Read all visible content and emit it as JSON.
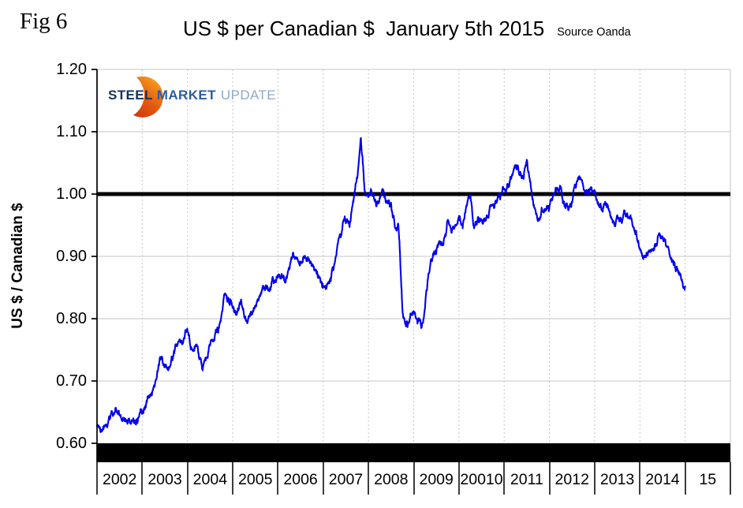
{
  "figure": {
    "label": "Fig 6"
  },
  "logo": {
    "steel": "STEEL",
    "market": "MARKET",
    "update": "UPDATE",
    "crescent_top_color": "#f7a41e",
    "crescent_bottom_color": "#d23b0e"
  },
  "chart_data": {
    "type": "line",
    "title": "US $ per Canadian $  January 5th 2015",
    "source": "Source Oanda",
    "ylabel": "US $ / Canadian $",
    "ylim": [
      0.57,
      1.2
    ],
    "xlim_years": [
      2002,
      2016
    ],
    "grid": {
      "h_color": "#c6c6c6",
      "v_color": "#c6c6c6",
      "v_style": "dashed"
    },
    "y_ticks": [
      {
        "label": "1.20",
        "value": 1.2
      },
      {
        "label": "1.10",
        "value": 1.1
      },
      {
        "label": "1.00",
        "value": 1.0
      },
      {
        "label": "0.90",
        "value": 0.9
      },
      {
        "label": "0.80",
        "value": 0.8
      },
      {
        "label": "0.70",
        "value": 0.7
      },
      {
        "label": "0.60",
        "value": 0.6
      }
    ],
    "x_cells": [
      "2002",
      "2003",
      "2004",
      "2005",
      "2006",
      "2007",
      "2008",
      "2009",
      "20010",
      "2011",
      "2012",
      "2013",
      "2014",
      "15"
    ],
    "reference_line": {
      "value": 1.0,
      "color": "#000000",
      "thickness_px": 5
    },
    "bottom_bar": {
      "from_value": 0.6,
      "color": "#000000"
    },
    "series": [
      {
        "name": "US $ per Canadian $",
        "color": "#0000ee",
        "start_year": 2002,
        "points_per_year": 12,
        "values": [
          0.627,
          0.622,
          0.628,
          0.636,
          0.65,
          0.657,
          0.646,
          0.639,
          0.634,
          0.631,
          0.637,
          0.641,
          0.65,
          0.662,
          0.678,
          0.69,
          0.716,
          0.738,
          0.724,
          0.719,
          0.733,
          0.756,
          0.763,
          0.768,
          0.78,
          0.753,
          0.756,
          0.74,
          0.717,
          0.737,
          0.757,
          0.764,
          0.78,
          0.806,
          0.84,
          0.825,
          0.818,
          0.806,
          0.824,
          0.806,
          0.795,
          0.81,
          0.82,
          0.835,
          0.853,
          0.849,
          0.846,
          0.861,
          0.866,
          0.872,
          0.858,
          0.88,
          0.906,
          0.896,
          0.889,
          0.897,
          0.897,
          0.886,
          0.879,
          0.866,
          0.851,
          0.856,
          0.86,
          0.888,
          0.926,
          0.941,
          0.953,
          0.947,
          0.987,
          1.025,
          1.09,
          1.005,
          0.996,
          1.001,
          0.982,
          0.992,
          1.006,
          0.986,
          0.986,
          0.947,
          0.944,
          0.815,
          0.79,
          0.8,
          0.812,
          0.792,
          0.785,
          0.817,
          0.872,
          0.897,
          0.906,
          0.921,
          0.927,
          0.958,
          0.938,
          0.95,
          0.965,
          0.945,
          0.98,
          0.998,
          0.945,
          0.962,
          0.958,
          0.957,
          0.972,
          0.982,
          0.986,
          0.996,
          1.008,
          1.016,
          1.028,
          1.046,
          1.032,
          1.026,
          1.055,
          1.017,
          0.978,
          0.958,
          0.976,
          0.976,
          0.979,
          1.001,
          1.007,
          1.012,
          0.981,
          0.974,
          0.986,
          1.01,
          1.028,
          1.012,
          1.001,
          1.011,
          1.006,
          0.982,
          0.975,
          0.984,
          0.972,
          0.956,
          0.966,
          0.958,
          0.971,
          0.962,
          0.951,
          0.941,
          0.912,
          0.901,
          0.903,
          0.911,
          0.92,
          0.936,
          0.931,
          0.916,
          0.899,
          0.889,
          0.879,
          0.863,
          0.852
        ]
      }
    ]
  }
}
